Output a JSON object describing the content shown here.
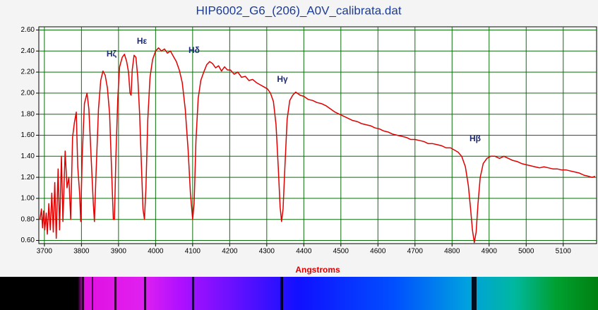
{
  "chart_data": {
    "type": "line",
    "title": "HIP6002_G6_(206)_A0V_calibrata.dat",
    "x_label": "Angstroms",
    "annotations": [
      "Hζ",
      "Hε",
      "Hδ",
      "Hγ",
      "Hβ"
    ],
    "color": "#e00000",
    "grid": true,
    "xlim": [
      3685,
      5190
    ],
    "ylim": [
      0.57,
      2.63
    ],
    "xticks": [
      3700,
      3800,
      3900,
      4000,
      4100,
      4200,
      4300,
      4400,
      4500,
      4600,
      4700,
      4800,
      4900,
      5000,
      5100
    ],
    "yticks": [
      {
        "value": 0.6,
        "label": "0.60"
      },
      {
        "value": 0.8,
        "label": "0.80"
      },
      {
        "value": 1,
        "label": "1.00"
      },
      {
        "value": 1.2,
        "label": "1.20"
      },
      {
        "value": 1.4,
        "label": "1.40"
      },
      {
        "value": 1.6,
        "label": "1.60"
      },
      {
        "value": 1.8,
        "label": "1.80"
      },
      {
        "value": 2,
        "label": "2.00"
      },
      {
        "value": 2.2,
        "label": "2.20"
      },
      {
        "value": 2.4,
        "label": "2.40"
      },
      {
        "value": 2.6,
        "label": "2.60"
      }
    ],
    "x": [
      3688,
      3692,
      3695,
      3698,
      3701,
      3705,
      3708,
      3712,
      3716,
      3720,
      3724,
      3728,
      3732,
      3737,
      3741,
      3746,
      3750,
      3756,
      3761,
      3766,
      3771,
      3776,
      3781,
      3786,
      3790,
      3795,
      3798,
      3802,
      3808,
      3815,
      3820,
      3826,
      3832,
      3835,
      3839,
      3846,
      3852,
      3858,
      3864,
      3870,
      3876,
      3882,
      3886,
      3889,
      3893,
      3898,
      3903,
      3910,
      3916,
      3922,
      3927,
      3931,
      3934,
      3937,
      3942,
      3947,
      3952,
      3957,
      3962,
      3966,
      3970,
      3974,
      3979,
      3985,
      3992,
      4000,
      4008,
      4016,
      4024,
      4032,
      4040,
      4048,
      4056,
      4064,
      4072,
      4080,
      4088,
      4094,
      4100,
      4104,
      4109,
      4115,
      4122,
      4130,
      4138,
      4146,
      4154,
      4162,
      4170,
      4178,
      4186,
      4194,
      4202,
      4212,
      4222,
      4232,
      4242,
      4252,
      4262,
      4272,
      4282,
      4292,
      4302,
      4310,
      4318,
      4325,
      4331,
      4336,
      4340,
      4344,
      4349,
      4355,
      4362,
      4370,
      4378,
      4390,
      4400,
      4412,
      4424,
      4436,
      4448,
      4460,
      4472,
      4484,
      4496,
      4508,
      4520,
      4532,
      4544,
      4556,
      4568,
      4580,
      4592,
      4604,
      4616,
      4628,
      4640,
      4652,
      4664,
      4676,
      4688,
      4700,
      4712,
      4724,
      4736,
      4748,
      4760,
      4772,
      4784,
      4796,
      4806,
      4816,
      4826,
      4836,
      4844,
      4850,
      4855,
      4860,
      4865,
      4870,
      4876,
      4884,
      4894,
      4904,
      4916,
      4928,
      4940,
      4952,
      4964,
      4976,
      4988,
      5000,
      5012,
      5024,
      5036,
      5048,
      5060,
      5072,
      5084,
      5096,
      5108,
      5120,
      5132,
      5144,
      5156,
      5168,
      5178,
      5186
    ],
    "values": [
      0.8,
      0.9,
      0.72,
      0.88,
      0.7,
      0.86,
      0.66,
      0.95,
      0.7,
      1.05,
      0.68,
      1.15,
      0.62,
      1.28,
      0.7,
      1.4,
      0.78,
      1.45,
      1.1,
      1.2,
      0.8,
      1.58,
      1.72,
      1.82,
      1.3,
      1.05,
      0.78,
      1.4,
      1.9,
      2.0,
      1.85,
      1.4,
      0.95,
      0.78,
      1.2,
      1.85,
      2.12,
      2.21,
      2.17,
      2.05,
      1.8,
      1.2,
      0.8,
      0.8,
      1.4,
      1.95,
      2.25,
      2.34,
      2.37,
      2.3,
      2.2,
      2.0,
      1.98,
      2.22,
      2.36,
      2.34,
      2.15,
      1.8,
      1.3,
      0.9,
      0.8,
      1.1,
      1.75,
      2.15,
      2.32,
      2.4,
      2.43,
      2.4,
      2.42,
      2.38,
      2.4,
      2.35,
      2.3,
      2.22,
      2.1,
      1.85,
      1.45,
      1.05,
      0.8,
      0.95,
      1.55,
      1.95,
      2.12,
      2.2,
      2.27,
      2.3,
      2.28,
      2.24,
      2.26,
      2.21,
      2.25,
      2.22,
      2.22,
      2.18,
      2.2,
      2.15,
      2.16,
      2.12,
      2.13,
      2.1,
      2.08,
      2.06,
      2.04,
      2.0,
      1.92,
      1.7,
      1.3,
      0.92,
      0.78,
      0.9,
      1.3,
      1.75,
      1.93,
      1.98,
      2.01,
      1.98,
      1.97,
      1.94,
      1.93,
      1.91,
      1.9,
      1.88,
      1.85,
      1.82,
      1.8,
      1.78,
      1.76,
      1.74,
      1.73,
      1.71,
      1.7,
      1.69,
      1.67,
      1.66,
      1.64,
      1.63,
      1.61,
      1.6,
      1.59,
      1.58,
      1.56,
      1.56,
      1.55,
      1.54,
      1.52,
      1.52,
      1.51,
      1.5,
      1.48,
      1.48,
      1.46,
      1.44,
      1.4,
      1.3,
      1.12,
      0.9,
      0.7,
      0.58,
      0.68,
      0.95,
      1.2,
      1.33,
      1.38,
      1.4,
      1.4,
      1.38,
      1.4,
      1.38,
      1.36,
      1.35,
      1.33,
      1.32,
      1.31,
      1.3,
      1.29,
      1.3,
      1.29,
      1.28,
      1.28,
      1.27,
      1.27,
      1.26,
      1.25,
      1.24,
      1.22,
      1.21,
      1.2,
      1.21
    ]
  }
}
